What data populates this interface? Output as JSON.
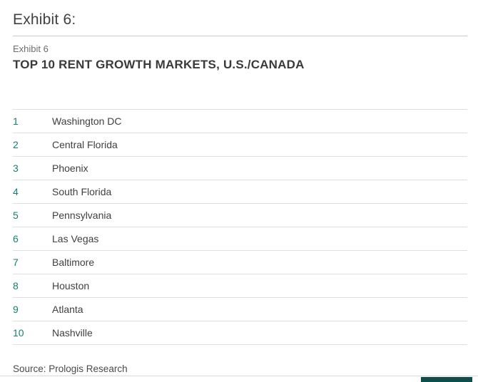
{
  "header": {
    "page_title": "Exhibit 6:",
    "exhibit_label": "Exhibit 6",
    "heading": "TOP 10 RENT GROWTH MARKETS, U.S./CANADA"
  },
  "table": {
    "rows": [
      {
        "rank": "1",
        "market": "Washington DC"
      },
      {
        "rank": "2",
        "market": "Central Florida"
      },
      {
        "rank": "3",
        "market": "Phoenix"
      },
      {
        "rank": "4",
        "market": "South Florida"
      },
      {
        "rank": "5",
        "market": "Pennsylvania"
      },
      {
        "rank": "6",
        "market": "Las Vegas"
      },
      {
        "rank": "7",
        "market": "Baltimore"
      },
      {
        "rank": "8",
        "market": "Houston"
      },
      {
        "rank": "9",
        "market": "Atlanta"
      },
      {
        "rank": "10",
        "market": "Nashville"
      }
    ]
  },
  "footer": {
    "source": "Source: Prologis Research"
  },
  "colors": {
    "accent_teal": "#157f72",
    "scrollbar_thumb": "#0d4f4b",
    "row_divider": "#dedede"
  }
}
